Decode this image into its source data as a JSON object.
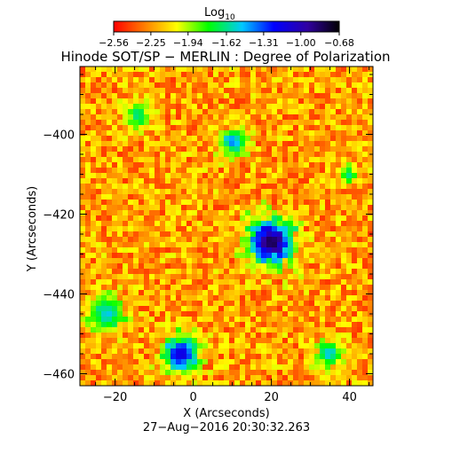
{
  "chart_data": {
    "type": "heatmap",
    "title": "Hinode SOT/SP − MERLIN : Degree of Polarization",
    "xlabel": "X (Arcseconds)",
    "ylabel": "Y (Arcseconds)",
    "timestamp": "27−Aug−2016 20:30:32.263",
    "xlim": [
      -29,
      46
    ],
    "ylim": [
      -463,
      -383
    ],
    "x_ticks": [
      -20,
      0,
      20,
      40
    ],
    "x_tick_labels": [
      "−20",
      "0",
      "20",
      "40"
    ],
    "y_ticks": [
      -400,
      -420,
      -440,
      -460
    ],
    "y_tick_labels": [
      "−400",
      "−420",
      "−440",
      "−460"
    ],
    "colorbar": {
      "title": "Log",
      "title_sub": "10",
      "ticks": [
        -2.56,
        -2.25,
        -1.94,
        -1.62,
        -1.31,
        -1.0,
        -0.68
      ],
      "tick_labels": [
        "−2.56",
        "−2.25",
        "−1.94",
        "−1.62",
        "−1.31",
        "−1.00",
        "−0.68"
      ],
      "range": [
        -2.56,
        -0.68
      ],
      "colors": [
        "#ff0000",
        "#ff8000",
        "#ffff00",
        "#00ff00",
        "#00c8ff",
        "#0000ff",
        "#3000a0",
        "#000000"
      ]
    },
    "features": [
      {
        "kind": "sunspot",
        "x": 20,
        "y": -427,
        "radius": 5,
        "value": -0.8
      },
      {
        "kind": "region",
        "x": -3,
        "y": -455,
        "radius": 4,
        "value": -1.1
      },
      {
        "kind": "region",
        "x": 10,
        "y": -402,
        "radius": 3,
        "value": -1.4
      },
      {
        "kind": "region",
        "x": -22,
        "y": -445,
        "radius": 4,
        "value": -1.5
      },
      {
        "kind": "region",
        "x": 35,
        "y": -455,
        "radius": 3,
        "value": -1.5
      },
      {
        "kind": "region",
        "x": -14,
        "y": -395,
        "radius": 3,
        "value": -1.6
      },
      {
        "kind": "region",
        "x": 40,
        "y": -410,
        "radius": 2,
        "value": -1.6
      }
    ]
  }
}
